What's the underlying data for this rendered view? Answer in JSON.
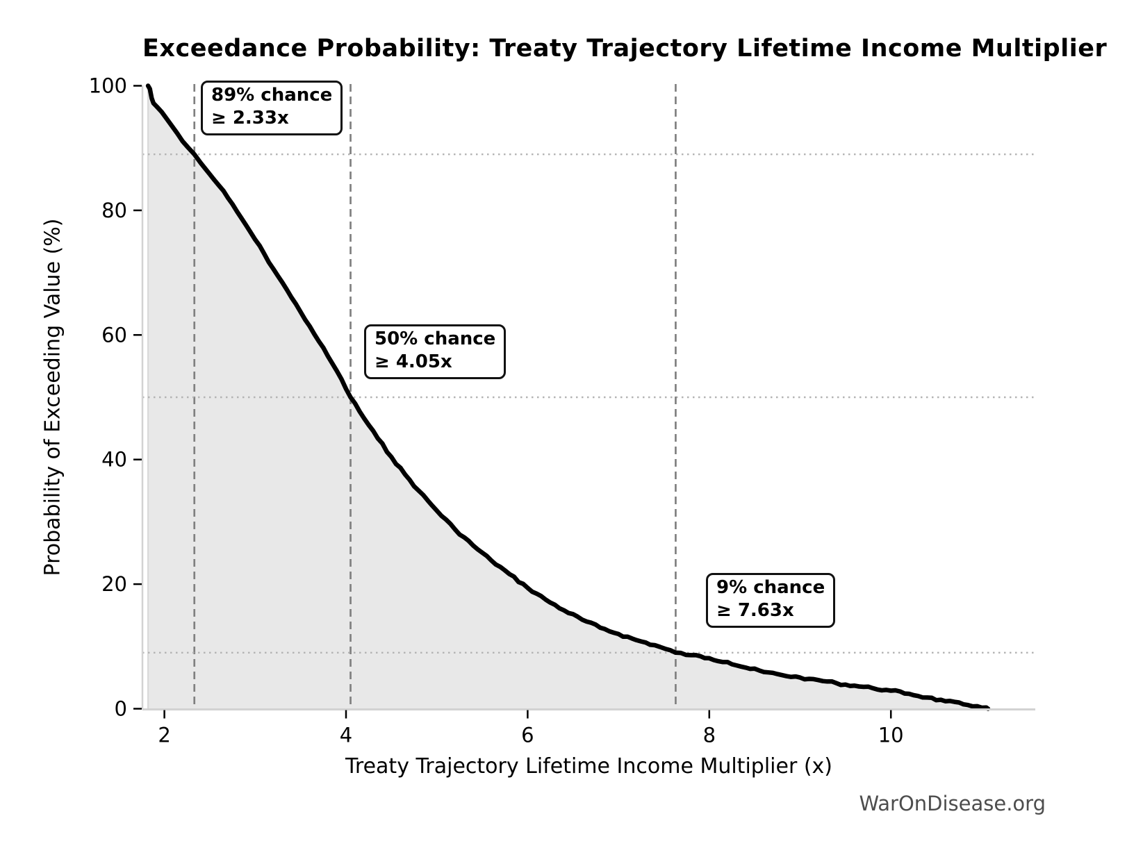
{
  "title": "Exceedance Probability: Treaty Trajectory Lifetime Income Multiplier",
  "watermark": "WarOnDisease.org",
  "chart_data": {
    "type": "area",
    "title": "Exceedance Probability: Treaty Trajectory Lifetime Income Multiplier",
    "xlabel": "Treaty Trajectory Lifetime Income Multiplier (x)",
    "ylabel": "Probability of Exceeding Value (%)",
    "xlim": [
      1.4,
      11.6
    ],
    "ylim": [
      0,
      100
    ],
    "x_ticks": [
      2,
      4,
      6,
      8,
      10
    ],
    "y_ticks": [
      0,
      20,
      40,
      60,
      80,
      100
    ],
    "grid": false,
    "legend": null,
    "curve": {
      "name": "exceedance-probability-curve",
      "points": [
        [
          1.82,
          100.0
        ],
        [
          1.84,
          99.5
        ],
        [
          1.86,
          98.0
        ],
        [
          1.88,
          97.2
        ],
        [
          1.92,
          96.6
        ],
        [
          1.97,
          95.8
        ],
        [
          2.02,
          94.8
        ],
        [
          2.08,
          93.6
        ],
        [
          2.14,
          92.4
        ],
        [
          2.2,
          91.1
        ],
        [
          2.26,
          90.1
        ],
        [
          2.33,
          89.0
        ],
        [
          2.4,
          87.6
        ],
        [
          2.5,
          85.8
        ],
        [
          2.6,
          84.0
        ],
        [
          2.7,
          82.0
        ],
        [
          2.8,
          79.8
        ],
        [
          2.9,
          77.6
        ],
        [
          3.0,
          75.3
        ],
        [
          3.1,
          73.0
        ],
        [
          3.2,
          70.6
        ],
        [
          3.3,
          68.4
        ],
        [
          3.4,
          66.0
        ],
        [
          3.5,
          63.7
        ],
        [
          3.6,
          61.4
        ],
        [
          3.7,
          59.0
        ],
        [
          3.8,
          56.6
        ],
        [
          3.9,
          54.2
        ],
        [
          4.05,
          50.0
        ],
        [
          4.2,
          46.6
        ],
        [
          4.35,
          43.4
        ],
        [
          4.5,
          40.4
        ],
        [
          4.65,
          37.6
        ],
        [
          4.8,
          35.0
        ],
        [
          5.0,
          31.8
        ],
        [
          5.2,
          28.8
        ],
        [
          5.4,
          26.2
        ],
        [
          5.6,
          23.8
        ],
        [
          5.8,
          21.6
        ],
        [
          6.0,
          19.4
        ],
        [
          6.2,
          17.5
        ],
        [
          6.4,
          15.8
        ],
        [
          6.6,
          14.3
        ],
        [
          6.8,
          13.0
        ],
        [
          7.0,
          12.0
        ],
        [
          7.2,
          11.0
        ],
        [
          7.4,
          10.2
        ],
        [
          7.63,
          9.0
        ],
        [
          7.8,
          8.6
        ],
        [
          8.0,
          8.1
        ],
        [
          8.2,
          7.5
        ],
        [
          8.4,
          6.6
        ],
        [
          8.6,
          5.9
        ],
        [
          8.8,
          5.4
        ],
        [
          9.0,
          5.0
        ],
        [
          9.2,
          4.6
        ],
        [
          9.4,
          4.1
        ],
        [
          9.6,
          3.7
        ],
        [
          9.8,
          3.3
        ],
        [
          10.0,
          2.9
        ],
        [
          10.2,
          2.4
        ],
        [
          10.4,
          1.8
        ],
        [
          10.6,
          1.2
        ],
        [
          10.8,
          0.7
        ],
        [
          10.95,
          0.4
        ],
        [
          11.05,
          0.2
        ],
        [
          11.07,
          0.0
        ]
      ]
    },
    "annotations": [
      {
        "probability_pct": 89,
        "threshold_x": 2.33,
        "line1": "89% chance",
        "line2": "≥ 2.33x"
      },
      {
        "probability_pct": 50,
        "threshold_x": 4.05,
        "line1": "50% chance",
        "line2": "≥ 4.05x"
      },
      {
        "probability_pct": 9,
        "threshold_x": 7.63,
        "line1": "9% chance",
        "line2": "≥ 7.63x"
      }
    ],
    "colors": {
      "curve": "#000000",
      "fill": "#e8e8e8",
      "fill_edge": "#d8d8d8",
      "dashed_line": "#808080",
      "dotted_line": "#b3b3b3",
      "spine": "#d2d2d2",
      "tick": "#000000",
      "watermark": "#4d4d4d"
    }
  }
}
